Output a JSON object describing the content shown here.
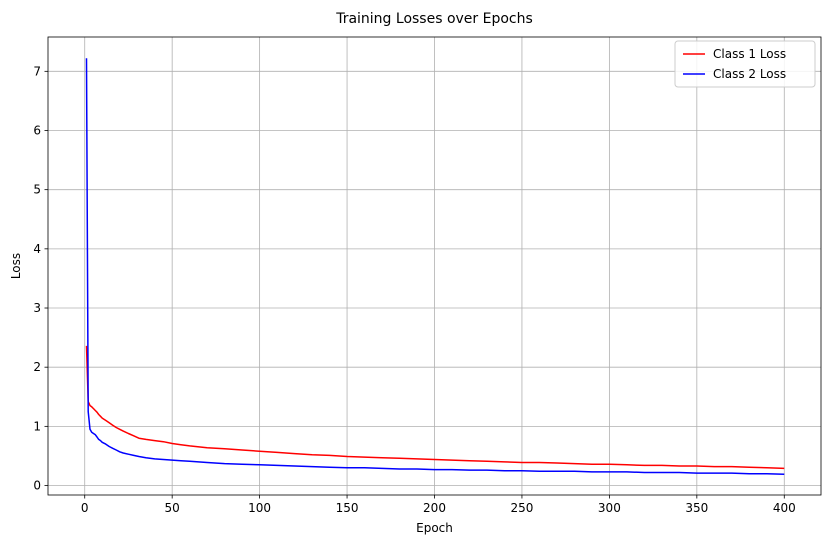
{
  "chart_data": {
    "type": "line",
    "title": "Training Losses over Epochs",
    "xlabel": "Epoch",
    "ylabel": "Loss",
    "xlim": [
      -21,
      421
    ],
    "ylim": [
      -0.16,
      7.58
    ],
    "xticks": [
      0,
      50,
      100,
      150,
      200,
      250,
      300,
      350,
      400
    ],
    "yticks": [
      0,
      1,
      2,
      3,
      4,
      5,
      6,
      7
    ],
    "grid": true,
    "legend_position": "top-right",
    "series": [
      {
        "name": "Class 1 Loss",
        "color": "#ff0000",
        "x": [
          1,
          2,
          3,
          4,
          5,
          6,
          7,
          8,
          9,
          10,
          12,
          14,
          16,
          18,
          20,
          22,
          25,
          28,
          31,
          35,
          40,
          45,
          50,
          55,
          60,
          70,
          80,
          90,
          100,
          110,
          120,
          130,
          140,
          150,
          160,
          170,
          180,
          190,
          200,
          210,
          220,
          230,
          240,
          250,
          260,
          270,
          280,
          290,
          300,
          310,
          320,
          330,
          340,
          350,
          360,
          370,
          380,
          390,
          400
        ],
        "values": [
          2.36,
          1.42,
          1.35,
          1.33,
          1.3,
          1.27,
          1.24,
          1.2,
          1.17,
          1.14,
          1.1,
          1.06,
          1.02,
          0.98,
          0.95,
          0.92,
          0.88,
          0.84,
          0.8,
          0.78,
          0.76,
          0.74,
          0.71,
          0.69,
          0.67,
          0.64,
          0.62,
          0.6,
          0.58,
          0.56,
          0.54,
          0.52,
          0.51,
          0.49,
          0.48,
          0.47,
          0.46,
          0.45,
          0.44,
          0.43,
          0.42,
          0.41,
          0.4,
          0.39,
          0.39,
          0.38,
          0.37,
          0.36,
          0.36,
          0.35,
          0.34,
          0.34,
          0.33,
          0.33,
          0.32,
          0.32,
          0.31,
          0.3,
          0.29
        ]
      },
      {
        "name": "Class 2 Loss",
        "color": "#0000ff",
        "x": [
          1,
          2,
          3,
          4,
          5,
          6,
          7,
          8,
          9,
          10,
          12,
          14,
          16,
          18,
          20,
          22,
          25,
          28,
          31,
          35,
          40,
          45,
          50,
          55,
          60,
          70,
          80,
          90,
          100,
          110,
          120,
          130,
          140,
          150,
          160,
          170,
          180,
          190,
          200,
          210,
          220,
          230,
          240,
          250,
          260,
          270,
          280,
          290,
          300,
          310,
          320,
          330,
          340,
          350,
          360,
          370,
          380,
          390,
          400
        ],
        "values": [
          7.22,
          1.25,
          0.95,
          0.9,
          0.88,
          0.86,
          0.82,
          0.78,
          0.76,
          0.73,
          0.7,
          0.66,
          0.63,
          0.6,
          0.57,
          0.55,
          0.53,
          0.51,
          0.49,
          0.47,
          0.45,
          0.44,
          0.43,
          0.42,
          0.41,
          0.39,
          0.37,
          0.36,
          0.35,
          0.34,
          0.33,
          0.32,
          0.31,
          0.3,
          0.3,
          0.29,
          0.28,
          0.28,
          0.27,
          0.27,
          0.26,
          0.26,
          0.25,
          0.25,
          0.24,
          0.24,
          0.24,
          0.23,
          0.23,
          0.23,
          0.22,
          0.22,
          0.22,
          0.21,
          0.21,
          0.21,
          0.2,
          0.2,
          0.19
        ]
      }
    ]
  }
}
